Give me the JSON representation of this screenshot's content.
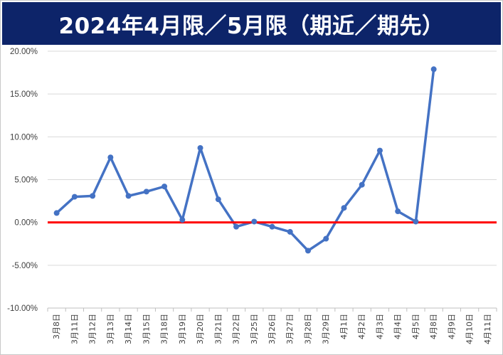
{
  "header": {
    "title": "2024年4月限／5月限（期近／期先）"
  },
  "colors": {
    "banner": "#0d2469",
    "line": "#4472c4",
    "zero_line": "#ff0000",
    "grid": "#d9d9d9"
  },
  "chart_data": {
    "type": "line",
    "title": "2024年4月限／5月限（期近／期先）",
    "xlabel": "",
    "ylabel": "",
    "ylim": [
      -0.1,
      0.2
    ],
    "y_ticks": [
      0.2,
      0.15,
      0.1,
      0.05,
      0.0,
      -0.05,
      -0.1
    ],
    "y_tick_labels": [
      "20.00%",
      "15.00%",
      "10.00%",
      "5.00%",
      "0.00%",
      "-5.00%",
      "-10.00%"
    ],
    "grid": true,
    "legend": "none",
    "categories": [
      "3月8日",
      "3月11日",
      "3月12日",
      "3月13日",
      "3月14日",
      "3月15日",
      "3月18日",
      "3月19日",
      "3月20日",
      "3月21日",
      "3月22日",
      "3月25日",
      "3月26日",
      "3月27日",
      "3月28日",
      "3月29日",
      "4月1日",
      "4月2日",
      "4月3日",
      "4月4日",
      "4月5日",
      "4月8日",
      "4月9日",
      "4月10日",
      "4月11日"
    ],
    "series": [
      {
        "values": [
          0.011,
          0.03,
          0.031,
          0.076,
          0.031,
          0.036,
          0.042,
          0.003,
          0.087,
          0.027,
          -0.005,
          0.001,
          -0.005,
          -0.011,
          -0.033,
          -0.019,
          0.017,
          0.044,
          0.084,
          0.013,
          0.001,
          0.179,
          null,
          null,
          null
        ]
      }
    ],
    "reference_line": {
      "y": 0.0,
      "color": "#ff0000"
    }
  }
}
